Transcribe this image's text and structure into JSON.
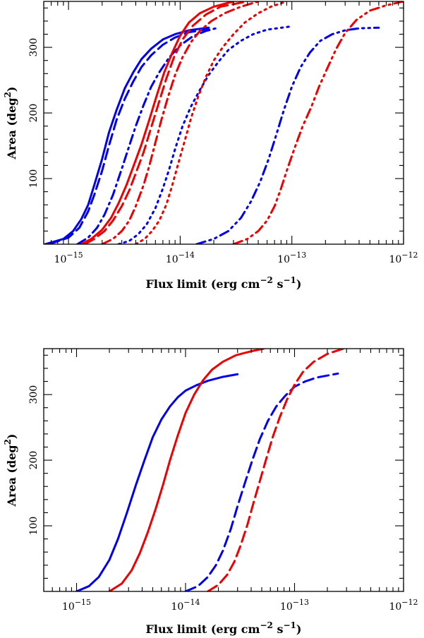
{
  "chart_data": [
    {
      "type": "line",
      "xscale": "log",
      "xlim": [
        6e-16,
        1e-12
      ],
      "ylim": [
        0,
        370
      ],
      "xlabel": "Flux limit (erg cm",
      "xlabel_exp1": "−2",
      "xlabel_mid": " s",
      "xlabel_exp2": "−1",
      "xlabel_end": ")",
      "ylabel": "Area (deg",
      "ylabel_exp": "2",
      "ylabel_end": ")",
      "xticks": [
        {
          "base": "10",
          "exp": "−15",
          "value": 1e-15
        },
        {
          "base": "10",
          "exp": "−14",
          "value": 1e-14
        },
        {
          "base": "10",
          "exp": "−13",
          "value": 1e-13
        },
        {
          "base": "10",
          "exp": "−12",
          "value": 1e-12
        }
      ],
      "yticks": [
        {
          "label": "100",
          "value": 100
        },
        {
          "label": "200",
          "value": 200
        },
        {
          "label": "300",
          "value": 300
        }
      ],
      "grid": false,
      "series": [
        {
          "color": "#0000ee",
          "style": "solid",
          "x": [
            6.2e-16,
            9e-16,
            1.1e-15,
            1.3e-15,
            1.5e-15,
            1.7e-15,
            2e-15,
            2.3e-15,
            2.7e-15,
            3.2e-15,
            3.8e-15,
            4.5e-15,
            5.5e-15,
            7e-15,
            9e-15,
            1.2e-14,
            1.8e-14
          ],
          "y": [
            0,
            8,
            20,
            38,
            60,
            90,
            130,
            170,
            205,
            238,
            262,
            282,
            298,
            312,
            320,
            326,
            330
          ]
        },
        {
          "color": "#0000ee",
          "style": "dashed",
          "x": [
            6.7e-16,
            1e-15,
            1.25e-15,
            1.5e-15,
            1.7e-15,
            2e-15,
            2.3e-15,
            2.7e-15,
            3.2e-15,
            3.8e-15,
            4.5e-15,
            5.5e-15,
            7e-15,
            9e-15,
            1.2e-14,
            1.8e-14
          ],
          "y": [
            0,
            10,
            25,
            50,
            75,
            112,
            150,
            190,
            222,
            248,
            270,
            288,
            304,
            315,
            323,
            328
          ]
        },
        {
          "color": "#0000ee",
          "style": "dashdot",
          "x": [
            1.2e-15,
            1.5e-15,
            1.8e-15,
            2.1e-15,
            2.5e-15,
            3e-15,
            3.5e-15,
            4e-15,
            4.7e-15,
            5.5e-15,
            6.5e-15,
            8e-15,
            1e-14,
            1.3e-14,
            1.7e-14,
            2.2e-14
          ],
          "y": [
            0,
            10,
            25,
            45,
            75,
            115,
            150,
            180,
            212,
            240,
            262,
            285,
            303,
            317,
            325,
            330
          ]
        },
        {
          "color": "#0000ee",
          "style": "dotted",
          "x": [
            2.8e-15,
            3.5e-15,
            4.2e-15,
            5e-15,
            6e-15,
            7e-15,
            8e-15,
            9e-15,
            1.05e-14,
            1.25e-14,
            1.5e-14,
            1.8e-14,
            2.2e-14,
            2.7e-14,
            3.5e-14,
            4.5e-14,
            6e-14,
            1e-13
          ],
          "y": [
            0,
            5,
            15,
            30,
            55,
            85,
            115,
            145,
            180,
            210,
            235,
            258,
            278,
            296,
            310,
            320,
            327,
            332
          ]
        },
        {
          "color": "#0000ee",
          "style": "dashdotdot",
          "x": [
            1.4e-14,
            2e-14,
            2.7e-14,
            3.5e-14,
            4.3e-14,
            5.2e-14,
            6.2e-14,
            7.2e-14,
            8.5e-14,
            1e-13,
            1.2e-13,
            1.45e-13,
            1.8e-13,
            2.3e-13,
            3e-13,
            4e-13,
            6e-13
          ],
          "y": [
            0,
            8,
            20,
            40,
            65,
            95,
            130,
            165,
            205,
            240,
            270,
            292,
            310,
            320,
            326,
            329,
            330
          ]
        },
        {
          "color": "#ee0000",
          "style": "solid",
          "x": [
            1.3e-15,
            1.6e-15,
            2e-15,
            2.4e-15,
            2.8e-15,
            3.3e-15,
            3.8e-15,
            4.5e-15,
            5.3e-15,
            6.2e-15,
            7.2e-15,
            8.5e-15,
            1e-14,
            1.2e-14,
            1.5e-14,
            2e-14,
            3e-14
          ],
          "y": [
            0,
            8,
            22,
            40,
            62,
            90,
            118,
            152,
            190,
            228,
            262,
            292,
            318,
            338,
            352,
            362,
            370
          ]
        },
        {
          "color": "#ee0000",
          "style": "dashed",
          "x": [
            1.4e-15,
            1.7e-15,
            2.1e-15,
            2.5e-15,
            3e-15,
            3.5e-15,
            4e-15,
            4.7e-15,
            5.5e-15,
            6.5e-15,
            7.5e-15,
            8.8e-15,
            1.05e-14,
            1.3e-14,
            1.7e-14,
            2.3e-14,
            4e-14
          ],
          "y": [
            0,
            8,
            20,
            36,
            58,
            82,
            108,
            140,
            178,
            218,
            252,
            285,
            312,
            333,
            350,
            362,
            370
          ]
        },
        {
          "color": "#ee0000",
          "style": "dashdot",
          "x": [
            2e-15,
            2.5e-15,
            3e-15,
            3.5e-15,
            4e-15,
            4.7e-15,
            5.3e-15,
            6e-15,
            6.8e-15,
            7.8e-15,
            9e-15,
            1.05e-14,
            1.25e-14,
            1.5e-14,
            1.9e-14,
            2.5e-14,
            3.5e-14,
            5e-14
          ],
          "y": [
            0,
            8,
            20,
            36,
            58,
            90,
            120,
            155,
            190,
            225,
            258,
            285,
            308,
            325,
            340,
            352,
            362,
            370
          ]
        },
        {
          "color": "#ee0000",
          "style": "dotted",
          "x": [
            4e-15,
            4.8e-15,
            5.6e-15,
            6.5e-15,
            7.5e-15,
            8.5e-15,
            9.5e-15,
            1.1e-14,
            1.25e-14,
            1.45e-14,
            1.7e-14,
            2e-14,
            2.4e-14,
            3e-14,
            3.8e-14,
            5e-14,
            6.5e-14,
            9e-14
          ],
          "y": [
            0,
            8,
            20,
            36,
            60,
            90,
            120,
            158,
            192,
            225,
            255,
            280,
            300,
            320,
            338,
            352,
            362,
            370
          ]
        },
        {
          "color": "#ee0000",
          "style": "dashdotdot",
          "x": [
            3e-14,
            4e-14,
            5e-14,
            6e-14,
            7e-14,
            8e-14,
            9e-14,
            1.05e-13,
            1.25e-13,
            1.5e-13,
            1.75e-13,
            2.1e-13,
            2.5e-13,
            3e-13,
            3.8e-13,
            5e-13,
            7e-13,
            1e-12
          ],
          "y": [
            0,
            8,
            20,
            36,
            58,
            85,
            112,
            145,
            180,
            210,
            240,
            270,
            298,
            322,
            342,
            356,
            364,
            370
          ]
        }
      ]
    },
    {
      "type": "line",
      "xscale": "log",
      "xlim": [
        5e-16,
        1e-12
      ],
      "ylim": [
        0,
        370
      ],
      "xlabel": "Flux limit (erg cm",
      "xlabel_exp1": "−2",
      "xlabel_mid": " s",
      "xlabel_exp2": "−1",
      "xlabel_end": ")",
      "ylabel": "Area (deg",
      "ylabel_exp": "2",
      "ylabel_end": ")",
      "xticks": [
        {
          "base": "10",
          "exp": "−15",
          "value": 1e-15
        },
        {
          "base": "10",
          "exp": "−14",
          "value": 1e-14
        },
        {
          "base": "10",
          "exp": "−13",
          "value": 1e-13
        },
        {
          "base": "10",
          "exp": "−12",
          "value": 1e-12
        }
      ],
      "yticks": [
        {
          "label": "100",
          "value": 100
        },
        {
          "label": "200",
          "value": 200
        },
        {
          "label": "300",
          "value": 300
        }
      ],
      "grid": false,
      "series": [
        {
          "color": "#0000ee",
          "style": "solid",
          "x": [
            1e-15,
            1.3e-15,
            1.6e-15,
            2e-15,
            2.4e-15,
            2.9e-15,
            3.5e-15,
            4.2e-15,
            5e-15,
            6e-15,
            7.2e-15,
            8.5e-15,
            1e-14,
            1.25e-14,
            1.6e-14,
            2.2e-14,
            3e-14
          ],
          "y": [
            0,
            8,
            22,
            48,
            80,
            120,
            162,
            200,
            235,
            262,
            282,
            296,
            306,
            314,
            321,
            327,
            331
          ]
        },
        {
          "color": "#ee0000",
          "style": "solid",
          "x": [
            2e-15,
            2.6e-15,
            3.2e-15,
            3.8e-15,
            4.5e-15,
            5.3e-15,
            6.2e-15,
            7.2e-15,
            8.5e-15,
            1e-14,
            1.2e-14,
            1.45e-14,
            1.75e-14,
            2.2e-14,
            2.9e-14,
            4e-14,
            5.2e-14
          ],
          "y": [
            0,
            12,
            32,
            58,
            90,
            125,
            162,
            200,
            238,
            272,
            300,
            322,
            338,
            350,
            360,
            366,
            370
          ]
        },
        {
          "color": "#0000ee",
          "style": "dashed",
          "x": [
            1e-14,
            1.3e-14,
            1.6e-14,
            1.9e-14,
            2.2e-14,
            2.6e-14,
            3e-14,
            3.5e-14,
            4.1e-14,
            4.8e-14,
            5.7e-14,
            6.8e-14,
            8.2e-14,
            1e-13,
            1.25e-13,
            1.6e-13,
            2.5e-13
          ],
          "y": [
            0,
            8,
            22,
            40,
            62,
            95,
            130,
            165,
            200,
            232,
            260,
            282,
            298,
            312,
            320,
            326,
            332
          ]
        },
        {
          "color": "#ee0000",
          "style": "dashed",
          "x": [
            1.6e-14,
            2e-14,
            2.4e-14,
            2.8e-14,
            3.2e-14,
            3.7e-14,
            4.2e-14,
            4.8e-14,
            5.5e-14,
            6.3e-14,
            7.3e-14,
            8.5e-14,
            1e-13,
            1.2e-13,
            1.5e-13,
            2e-13,
            2.8e-13
          ],
          "y": [
            0,
            10,
            25,
            45,
            70,
            102,
            135,
            168,
            202,
            235,
            265,
            292,
            315,
            335,
            350,
            362,
            370
          ]
        }
      ]
    }
  ]
}
